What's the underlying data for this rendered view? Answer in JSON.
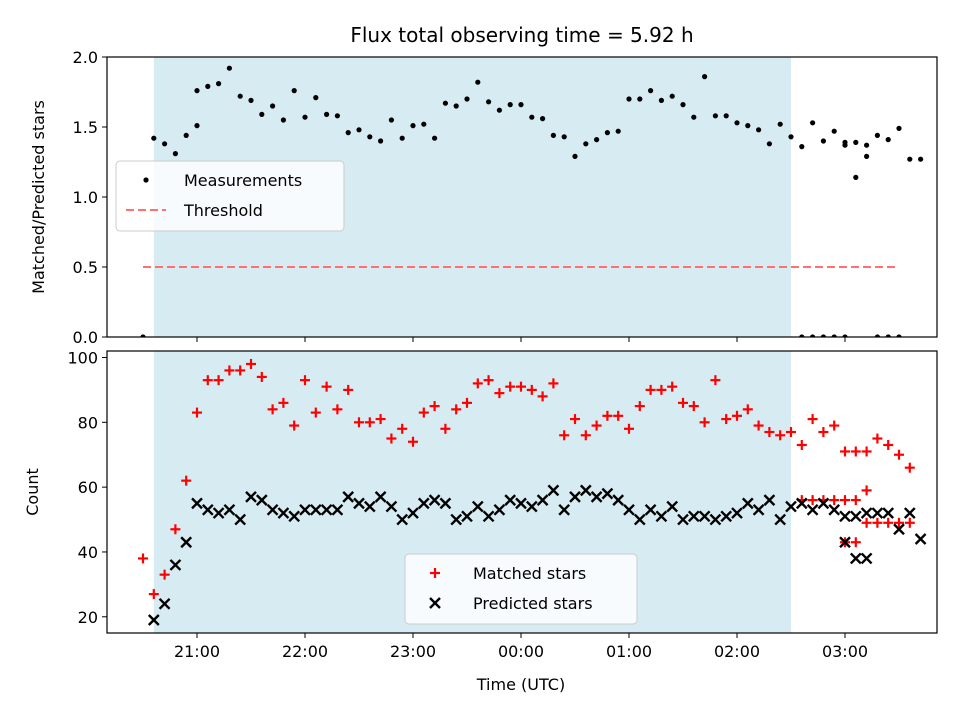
{
  "chart_data": [
    {
      "type": "scatter",
      "title": "Flux total observing time = 5.92 h",
      "xlabel": "",
      "ylabel": "Matched/Predicted stars",
      "ylim": [
        0,
        2.0
      ],
      "yticks": [
        "0.0",
        "0.5",
        "1.0",
        "1.5",
        "2.0"
      ],
      "shaded_span": [
        "20:36",
        "02:30"
      ],
      "shade_color": "#add8e6",
      "legend_position": "center-left",
      "series": [
        {
          "name": "Measurements",
          "marker": "dot",
          "color": "#000000",
          "points": [
            [
              "20:30",
              0.0
            ],
            [
              "20:36",
              1.42
            ],
            [
              "20:42",
              1.38
            ],
            [
              "20:48",
              1.31
            ],
            [
              "20:54",
              1.44
            ],
            [
              "21:00",
              1.51
            ],
            [
              "21:00",
              1.76
            ],
            [
              "21:06",
              1.79
            ],
            [
              "21:12",
              1.81
            ],
            [
              "21:18",
              1.92
            ],
            [
              "21:24",
              1.72
            ],
            [
              "21:30",
              1.69
            ],
            [
              "21:36",
              1.59
            ],
            [
              "21:42",
              1.65
            ],
            [
              "21:48",
              1.55
            ],
            [
              "21:54",
              1.76
            ],
            [
              "22:00",
              1.57
            ],
            [
              "22:06",
              1.71
            ],
            [
              "22:12",
              1.59
            ],
            [
              "22:18",
              1.58
            ],
            [
              "22:24",
              1.46
            ],
            [
              "22:30",
              1.48
            ],
            [
              "22:36",
              1.43
            ],
            [
              "22:42",
              1.4
            ],
            [
              "22:48",
              1.55
            ],
            [
              "22:54",
              1.42
            ],
            [
              "23:00",
              1.51
            ],
            [
              "23:06",
              1.52
            ],
            [
              "23:12",
              1.42
            ],
            [
              "23:18",
              1.67
            ],
            [
              "23:24",
              1.65
            ],
            [
              "23:30",
              1.7
            ],
            [
              "23:36",
              1.82
            ],
            [
              "23:42",
              1.68
            ],
            [
              "23:48",
              1.62
            ],
            [
              "23:54",
              1.66
            ],
            [
              "00:00",
              1.66
            ],
            [
              "00:06",
              1.57
            ],
            [
              "00:12",
              1.56
            ],
            [
              "00:18",
              1.44
            ],
            [
              "00:24",
              1.43
            ],
            [
              "00:30",
              1.29
            ],
            [
              "00:36",
              1.38
            ],
            [
              "00:42",
              1.41
            ],
            [
              "00:48",
              1.46
            ],
            [
              "00:54",
              1.47
            ],
            [
              "01:00",
              1.7
            ],
            [
              "01:06",
              1.7
            ],
            [
              "01:12",
              1.76
            ],
            [
              "01:18",
              1.69
            ],
            [
              "01:24",
              1.72
            ],
            [
              "01:30",
              1.66
            ],
            [
              "01:36",
              1.57
            ],
            [
              "01:42",
              1.86
            ],
            [
              "01:48",
              1.58
            ],
            [
              "01:54",
              1.58
            ],
            [
              "02:00",
              1.53
            ],
            [
              "02:06",
              1.51
            ],
            [
              "02:12",
              1.48
            ],
            [
              "02:18",
              1.38
            ],
            [
              "02:24",
              1.52
            ],
            [
              "02:30",
              1.43
            ],
            [
              "02:36",
              1.36
            ],
            [
              "02:42",
              1.53
            ],
            [
              "02:48",
              1.4
            ],
            [
              "02:54",
              1.47
            ],
            [
              "03:00",
              1.39
            ],
            [
              "03:06",
              1.39
            ],
            [
              "03:12",
              1.37
            ],
            [
              "03:18",
              1.44
            ],
            [
              "03:24",
              1.41
            ],
            [
              "03:30",
              1.49
            ],
            [
              "03:36",
              1.27
            ],
            [
              "03:42",
              1.27
            ],
            [
              "02:36",
              0.0
            ],
            [
              "02:42",
              0.0
            ],
            [
              "02:48",
              0.0
            ],
            [
              "02:54",
              0.0
            ],
            [
              "03:00",
              0.0
            ],
            [
              "03:00",
              1.37
            ],
            [
              "03:06",
              1.14
            ],
            [
              "03:12",
              1.29
            ],
            [
              "03:18",
              0.0
            ],
            [
              "03:24",
              0.0
            ],
            [
              "03:30",
              0.0
            ]
          ]
        },
        {
          "name": "Threshold",
          "line": "dashed",
          "color": "#ff7070",
          "points": [
            [
              "20:30",
              0.5
            ],
            [
              "03:30",
              0.5
            ]
          ]
        }
      ]
    },
    {
      "type": "scatter",
      "title": "",
      "xlabel": "Time (UTC)",
      "ylabel": "Count",
      "ylim": [
        15,
        102
      ],
      "yticks": [
        "20",
        "40",
        "60",
        "80",
        "100"
      ],
      "xticks": [
        "21:00",
        "22:00",
        "23:00",
        "00:00",
        "01:00",
        "02:00",
        "03:00"
      ],
      "shaded_span": [
        "20:36",
        "02:30"
      ],
      "shade_color": "#add8e6",
      "legend_position": "lower-center",
      "series": [
        {
          "name": "Matched stars",
          "marker": "plus",
          "color": "#ff0000",
          "points": [
            [
              "20:30",
              38
            ],
            [
              "20:36",
              27
            ],
            [
              "20:42",
              33
            ],
            [
              "20:48",
              47
            ],
            [
              "20:54",
              62
            ],
            [
              "21:00",
              83
            ],
            [
              "21:06",
              93
            ],
            [
              "21:12",
              93
            ],
            [
              "21:18",
              96
            ],
            [
              "21:24",
              96
            ],
            [
              "21:30",
              98
            ],
            [
              "21:36",
              94
            ],
            [
              "21:42",
              84
            ],
            [
              "21:48",
              86
            ],
            [
              "21:54",
              79
            ],
            [
              "22:00",
              93
            ],
            [
              "22:06",
              83
            ],
            [
              "22:12",
              91
            ],
            [
              "22:18",
              84
            ],
            [
              "22:24",
              90
            ],
            [
              "22:30",
              80
            ],
            [
              "22:36",
              80
            ],
            [
              "22:42",
              81
            ],
            [
              "22:48",
              75
            ],
            [
              "22:54",
              78
            ],
            [
              "23:00",
              74
            ],
            [
              "23:06",
              83
            ],
            [
              "23:12",
              85
            ],
            [
              "23:18",
              78
            ],
            [
              "23:24",
              84
            ],
            [
              "23:30",
              86
            ],
            [
              "23:36",
              92
            ],
            [
              "23:42",
              93
            ],
            [
              "23:48",
              89
            ],
            [
              "23:54",
              91
            ],
            [
              "00:00",
              91
            ],
            [
              "00:06",
              90
            ],
            [
              "00:12",
              88
            ],
            [
              "00:18",
              92
            ],
            [
              "00:24",
              76
            ],
            [
              "00:30",
              81
            ],
            [
              "00:36",
              76
            ],
            [
              "00:42",
              79
            ],
            [
              "00:48",
              82
            ],
            [
              "00:54",
              82
            ],
            [
              "01:00",
              78
            ],
            [
              "01:06",
              85
            ],
            [
              "01:12",
              90
            ],
            [
              "01:18",
              90
            ],
            [
              "01:24",
              91
            ],
            [
              "01:30",
              86
            ],
            [
              "01:36",
              85
            ],
            [
              "01:42",
              80
            ],
            [
              "01:48",
              93
            ],
            [
              "01:54",
              81
            ],
            [
              "02:00",
              82
            ],
            [
              "02:06",
              84
            ],
            [
              "02:12",
              79
            ],
            [
              "02:18",
              77
            ],
            [
              "02:24",
              76
            ],
            [
              "02:30",
              77
            ],
            [
              "02:36",
              73
            ],
            [
              "02:42",
              81
            ],
            [
              "02:48",
              77
            ],
            [
              "02:54",
              79
            ],
            [
              "03:00",
              71
            ],
            [
              "03:06",
              71
            ],
            [
              "03:12",
              71
            ],
            [
              "03:18",
              75
            ],
            [
              "03:24",
              73
            ],
            [
              "03:30",
              70
            ],
            [
              "03:36",
              66
            ],
            [
              "02:36",
              56
            ],
            [
              "02:42",
              56
            ],
            [
              "02:48",
              56
            ],
            [
              "02:54",
              56
            ],
            [
              "03:00",
              56
            ],
            [
              "03:06",
              56
            ],
            [
              "03:12",
              59
            ],
            [
              "03:00",
              43
            ],
            [
              "03:06",
              43
            ],
            [
              "03:12",
              49
            ],
            [
              "03:18",
              49
            ],
            [
              "03:24",
              49
            ],
            [
              "03:30",
              49
            ],
            [
              "03:36",
              49
            ]
          ]
        },
        {
          "name": "Predicted stars",
          "marker": "x",
          "color": "#000000",
          "points": [
            [
              "20:36",
              19
            ],
            [
              "20:42",
              24
            ],
            [
              "20:48",
              36
            ],
            [
              "20:54",
              43
            ],
            [
              "21:00",
              55
            ],
            [
              "21:06",
              53
            ],
            [
              "21:12",
              52
            ],
            [
              "21:18",
              53
            ],
            [
              "21:24",
              50
            ],
            [
              "21:30",
              57
            ],
            [
              "21:36",
              56
            ],
            [
              "21:42",
              53
            ],
            [
              "21:48",
              52
            ],
            [
              "21:54",
              51
            ],
            [
              "22:00",
              53
            ],
            [
              "22:06",
              53
            ],
            [
              "22:12",
              53
            ],
            [
              "22:18",
              53
            ],
            [
              "22:24",
              57
            ],
            [
              "22:30",
              55
            ],
            [
              "22:36",
              54
            ],
            [
              "22:42",
              57
            ],
            [
              "22:48",
              54
            ],
            [
              "22:54",
              50
            ],
            [
              "23:00",
              52
            ],
            [
              "23:06",
              55
            ],
            [
              "23:12",
              56
            ],
            [
              "23:18",
              55
            ],
            [
              "23:24",
              50
            ],
            [
              "23:30",
              51
            ],
            [
              "23:36",
              54
            ],
            [
              "23:42",
              51
            ],
            [
              "23:48",
              53
            ],
            [
              "23:54",
              56
            ],
            [
              "00:00",
              55
            ],
            [
              "00:06",
              54
            ],
            [
              "00:12",
              56
            ],
            [
              "00:18",
              59
            ],
            [
              "00:24",
              53
            ],
            [
              "00:30",
              57
            ],
            [
              "00:36",
              59
            ],
            [
              "00:42",
              57
            ],
            [
              "00:48",
              58
            ],
            [
              "00:54",
              56
            ],
            [
              "01:00",
              53
            ],
            [
              "01:06",
              50
            ],
            [
              "01:12",
              53
            ],
            [
              "01:18",
              51
            ],
            [
              "01:24",
              54
            ],
            [
              "01:30",
              50
            ],
            [
              "01:36",
              51
            ],
            [
              "01:42",
              51
            ],
            [
              "01:48",
              50
            ],
            [
              "01:54",
              51
            ],
            [
              "02:00",
              52
            ],
            [
              "02:06",
              55
            ],
            [
              "02:12",
              53
            ],
            [
              "02:18",
              56
            ],
            [
              "02:24",
              50
            ],
            [
              "02:30",
              54
            ],
            [
              "02:36",
              55
            ],
            [
              "02:42",
              53
            ],
            [
              "02:48",
              55
            ],
            [
              "02:54",
              53
            ],
            [
              "03:00",
              51
            ],
            [
              "03:06",
              51
            ],
            [
              "03:12",
              52
            ],
            [
              "03:18",
              52
            ],
            [
              "03:24",
              52
            ],
            [
              "03:30",
              47
            ],
            [
              "03:36",
              52
            ],
            [
              "03:42",
              44
            ],
            [
              "03:00",
              43
            ],
            [
              "03:06",
              38
            ],
            [
              "03:12",
              38
            ]
          ]
        }
      ]
    }
  ]
}
